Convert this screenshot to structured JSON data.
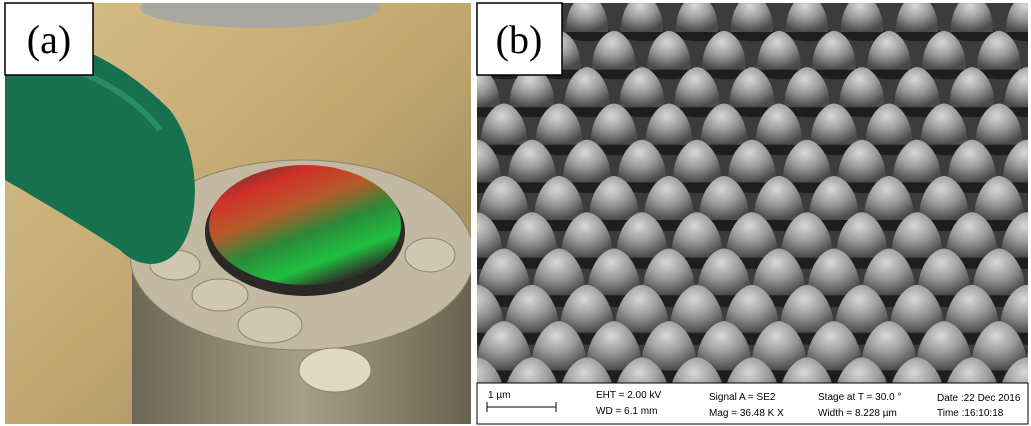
{
  "panels": [
    {
      "label": "(a)"
    },
    {
      "label": "(b)",
      "sem_info": {
        "scale_bar": "1 µm",
        "eht": "EHT = 2.00 kV",
        "wd": "WD = 6.1 mm",
        "signal": "Signal A = SE2",
        "mag": "Mag =  36.48 K X",
        "stage": "Stage at T =  30.0 °",
        "width": "Width = 8.228 µm",
        "date": "Date :22 Dec 2016",
        "time": "Time :16:10:18"
      }
    }
  ]
}
